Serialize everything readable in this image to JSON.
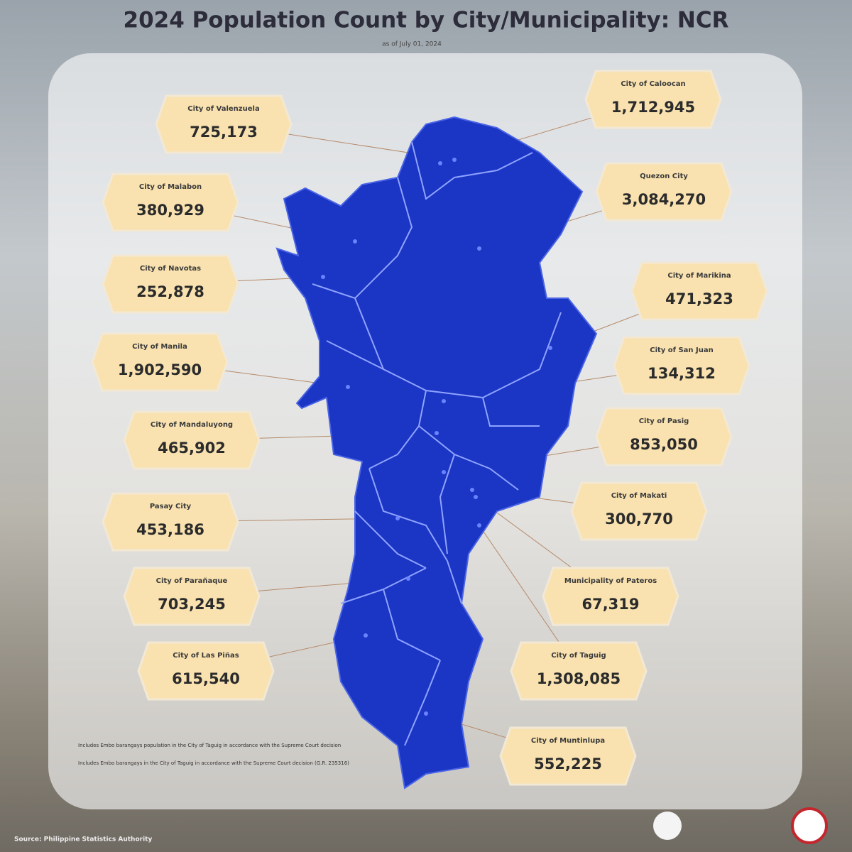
{
  "header": {
    "title": "2024 Population Count by City/Municipality: NCR",
    "subtitle": "as of July 01, 2024"
  },
  "left_callouts": [
    {
      "name": "City of Valenzuela",
      "value": "725,173"
    },
    {
      "name": "City of Malabon",
      "value": "380,929"
    },
    {
      "name": "City of Navotas",
      "value": "252,878"
    },
    {
      "name": "City of Manila",
      "value": "1,902,590"
    },
    {
      "name": "City of Mandaluyong",
      "value": "465,902"
    },
    {
      "name": "Pasay City",
      "value": "453,186"
    },
    {
      "name": "City of Parañaque",
      "value": "703,245"
    },
    {
      "name": "City of Las Piñas",
      "value": "615,540"
    }
  ],
  "right_callouts": [
    {
      "name": "City of Caloocan",
      "value": "1,712,945"
    },
    {
      "name": "Quezon City",
      "value": "3,084,270"
    },
    {
      "name": "City of Marikina",
      "value": "471,323"
    },
    {
      "name": "City of San Juan",
      "value": "134,312"
    },
    {
      "name": "City of Pasig",
      "value": "853,050"
    },
    {
      "name": "City of Makati",
      "value": "300,770"
    },
    {
      "name": "Municipality of Pateros",
      "value": "67,319"
    },
    {
      "name": "City of Taguig",
      "value": "1,308,085"
    },
    {
      "name": "City of Muntinlupa",
      "value": "552,225"
    }
  ],
  "footnotes": [
    "Includes Embo barangays population in the City of Taguig in accordance with the Supreme Court decision",
    "Includes Embo barangays in the City of Taguig in accordance with the Supreme Court decision (G.R. 235316)"
  ],
  "source": "Source: Philippine Statistics Authority"
}
